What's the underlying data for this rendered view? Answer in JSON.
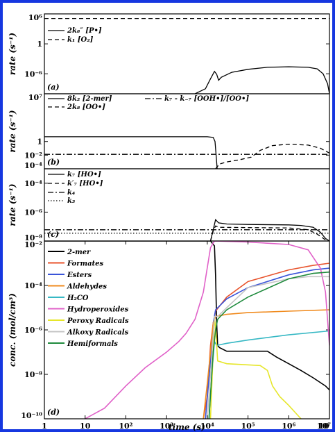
{
  "chart_data": [
    {
      "panel": "(a)",
      "type": "line",
      "ylabel": "rate (s⁻¹)",
      "yscale": "log",
      "ylim": [
        1e-10,
        1000000.0
      ],
      "yticks": [
        {
          "v": 1000000.0,
          "t": "10⁶"
        },
        {
          "v": 1,
          "t": "1"
        },
        {
          "v": 1e-06,
          "t": "10⁻⁶"
        }
      ],
      "legend": [
        "2k₈″ [P•]",
        "k₁ [O₂]"
      ],
      "series": [
        {
          "name": "2k₈″ [P•]",
          "style": "solid",
          "points": [
            [
              5000,
              1e-10
            ],
            [
              9000,
              1e-09
            ],
            [
              12000,
              1e-07
            ],
            [
              15000,
              3e-06
            ],
            [
              17000,
              8e-07
            ],
            [
              19000,
              5e-08
            ],
            [
              22000,
              2e-07
            ],
            [
              40000,
              2e-06
            ],
            [
              100000,
              8e-06
            ],
            [
              300000,
              2e-05
            ],
            [
              1000000,
              2.5e-05
            ],
            [
              3000000,
              2e-05
            ],
            [
              5000000,
              1e-05
            ],
            [
              7000000,
              1e-06
            ],
            [
              9000000,
              1e-08
            ],
            [
              10000000,
              1e-10
            ]
          ]
        },
        {
          "name": "k₁ [O₂]",
          "style": "dashed",
          "points": [
            [
              1,
              120000.0
            ],
            [
              10000000,
              120000.0
            ]
          ]
        }
      ]
    },
    {
      "panel": "(b)",
      "type": "line",
      "ylabel": "rate (s⁻¹)",
      "yscale": "log",
      "ylim": [
        0.0001,
        10000000.0
      ],
      "yticks": [
        {
          "v": 10000000.0,
          "t": "10⁷"
        },
        {
          "v": 1,
          "t": "1"
        },
        {
          "v": 0.01,
          "t": "10⁻²"
        },
        {
          "v": 0.0001,
          "t": "10⁻⁴"
        }
      ],
      "legend": [
        "8k₂ [2-mer]",
        "k₇ - k₋₇ [OOH•]/[OO•]",
        "2k₈ [OO•]"
      ],
      "series": [
        {
          "name": "8k₂ [2-mer]",
          "style": "solid",
          "points": [
            [
              1,
              5
            ],
            [
              10000,
              5
            ],
            [
              14000,
              4
            ],
            [
              15500,
              1
            ],
            [
              16500,
              0.01
            ],
            [
              17500,
              0.0001
            ]
          ]
        },
        {
          "name": "k₇ - k₋₇ [OOH•]/[OO•]",
          "style": "dashdot",
          "points": [
            [
              1,
              0.013
            ],
            [
              10000000,
              0.013
            ]
          ]
        },
        {
          "name": "2k₈ [OO•]",
          "style": "dashed",
          "points": [
            [
              16000,
              0.0001
            ],
            [
              20000,
              0.0005
            ],
            [
              30000,
              0.001
            ],
            [
              60000,
              0.002
            ],
            [
              120000,
              0.005
            ],
            [
              200000,
              0.05
            ],
            [
              400000,
              0.25
            ],
            [
              1000000,
              0.4
            ],
            [
              3000000,
              0.3
            ],
            [
              6000000,
              0.1
            ],
            [
              10000000,
              0.02
            ]
          ]
        }
      ]
    },
    {
      "panel": "(c)",
      "type": "line",
      "ylabel": "rate (s⁻¹)",
      "yscale": "log",
      "ylim": [
        1e-08,
        0.001
      ],
      "yticks": [
        {
          "v": 0.0001,
          "t": "10⁻⁴"
        },
        {
          "v": 1e-06,
          "t": "10⁻⁶"
        },
        {
          "v": 1e-08,
          "t": "10⁻⁸"
        }
      ],
      "legend": [
        "k₇ [HO•]",
        "k′₇ [HO•]",
        "k₄",
        "k₃"
      ],
      "series": [
        {
          "name": "k₇ [HO•]",
          "style": "solid",
          "points": [
            [
              12000,
              1e-08
            ],
            [
              14000,
              6e-08
            ],
            [
              16000,
              3e-07
            ],
            [
              19000,
              1.8e-07
            ],
            [
              30000,
              1.5e-07
            ],
            [
              100000,
              1.4e-07
            ],
            [
              1000000,
              1.3e-07
            ],
            [
              2000000,
              1.2e-07
            ],
            [
              4000000,
              9e-08
            ],
            [
              6000000,
              4e-08
            ],
            [
              8000000,
              1.5e-08
            ],
            [
              10000000,
              1e-08
            ]
          ]
        },
        {
          "name": "k′₇ [HO•]",
          "style": "dashed",
          "points": [
            [
              12000,
              1e-08
            ],
            [
              14000,
              5e-08
            ],
            [
              16000,
              1.1e-07
            ],
            [
              19000,
              9e-08
            ],
            [
              100000,
              8.5e-08
            ],
            [
              1000000,
              8e-08
            ],
            [
              3000000,
              6e-08
            ],
            [
              5000000,
              3e-08
            ],
            [
              8000000,
              1.2e-08
            ],
            [
              10000000,
              1e-08
            ]
          ]
        },
        {
          "name": "k₄",
          "style": "dashdot",
          "points": [
            [
              1,
              6e-08
            ],
            [
              10000000,
              6e-08
            ]
          ]
        },
        {
          "name": "k₃",
          "style": "dotted",
          "points": [
            [
              1,
              3.5e-08
            ],
            [
              10000000,
              3.5e-08
            ]
          ]
        }
      ]
    },
    {
      "panel": "(d)",
      "type": "line",
      "ylabel": "conc. (mol/cm³)",
      "xlabel": "time (s)",
      "xscale": "log",
      "xlim": [
        1,
        10000000.0
      ],
      "xticks": [
        {
          "v": 1,
          "t": "1"
        },
        {
          "v": 10,
          "t": "10"
        },
        {
          "v": 100,
          "t": "10²"
        },
        {
          "v": 1000,
          "t": "10³"
        },
        {
          "v": 10000,
          "t": "10⁴"
        },
        {
          "v": 100000,
          "t": "10⁵"
        },
        {
          "v": 1000000,
          "t": "10⁶"
        },
        {
          "v": 10000000,
          "t": "10⁷"
        },
        {
          "v": 100000000,
          "t": "10"
        }
      ],
      "yscale": "log",
      "ylim": [
        1e-10,
        0.01
      ],
      "yticks": [
        {
          "v": 0.01,
          "t": "10⁻²"
        },
        {
          "v": 0.0001,
          "t": "10⁻⁴"
        },
        {
          "v": 1e-06,
          "t": "10⁻⁶"
        },
        {
          "v": 1e-08,
          "t": "10⁻⁸"
        },
        {
          "v": 1e-10,
          "t": "10⁻¹⁰"
        }
      ],
      "series": [
        {
          "name": "2-mer",
          "color": "#000000",
          "points": [
            [
              1,
              0.01
            ],
            [
              12000,
              0.01
            ],
            [
              15000,
              0.006
            ],
            [
              16000,
              0.0003
            ],
            [
              17000,
              2e-06
            ],
            [
              18000,
              2e-07
            ],
            [
              20000,
              1.6e-07
            ],
            [
              30000,
              1.1e-07
            ],
            [
              100000.0,
              1.1e-07
            ],
            [
              300000.0,
              1.1e-07
            ],
            [
              500000.0,
              6e-08
            ],
            [
              1000000.0,
              3e-08
            ],
            [
              2000000.0,
              1.5e-08
            ],
            [
              4000000.0,
              7e-09
            ],
            [
              8000000.0,
              3e-09
            ],
            [
              10000000.0,
              2e-09
            ]
          ]
        },
        {
          "name": "Formates",
          "color": "#e8532c",
          "points": [
            [
              8000,
              1e-10
            ],
            [
              10000,
              1e-09
            ],
            [
              12000,
              2e-07
            ],
            [
              14000,
              2e-06
            ],
            [
              16000,
              7e-06
            ],
            [
              30000,
              3e-05
            ],
            [
              100000.0,
              0.00015
            ],
            [
              1000000.0,
              0.0005
            ],
            [
              4000000.0,
              0.0008
            ],
            [
              10000000.0,
              0.001
            ]
          ]
        },
        {
          "name": "Esters",
          "color": "#3a54d8",
          "points": [
            [
              9000,
              1e-10
            ],
            [
              12000,
              4e-08
            ],
            [
              14000,
              2e-06
            ],
            [
              16000,
              8e-06
            ],
            [
              30000,
              2.5e-05
            ],
            [
              100000.0,
              8e-05
            ],
            [
              1000000.0,
              0.0003
            ],
            [
              4000000.0,
              0.0005
            ],
            [
              10000000.0,
              0.0006
            ]
          ]
        },
        {
          "name": "Aldehydes",
          "color": "#f08b1f",
          "points": [
            [
              8000,
              1e-10
            ],
            [
              10000,
              4e-09
            ],
            [
              12000,
              1e-07
            ],
            [
              14000,
              2e-06
            ],
            [
              16000,
              4e-06
            ],
            [
              30000,
              5e-06
            ],
            [
              100000.0,
              6e-06
            ],
            [
              1000000.0,
              7e-06
            ],
            [
              10000000.0,
              8e-06
            ]
          ]
        },
        {
          "name": "H₂CO",
          "color": "#36b8c4",
          "points": [
            [
              11000,
              1e-10
            ],
            [
              13000,
              1e-08
            ],
            [
              15000,
              3e-07
            ],
            [
              17000,
              2e-07
            ],
            [
              30000,
              2.5e-07
            ],
            [
              100000.0,
              3.5e-07
            ],
            [
              1000000.0,
              6e-07
            ],
            [
              10000000.0,
              9e-07
            ]
          ]
        },
        {
          "name": "Hydroperoxides",
          "color": "#e060c8",
          "points": [
            [
              10,
              1e-10
            ],
            [
              30,
              3e-10
            ],
            [
              100,
              3e-09
            ],
            [
              300,
              2e-08
            ],
            [
              1000,
              1e-07
            ],
            [
              2000,
              3e-07
            ],
            [
              3000,
              7e-07
            ],
            [
              5000,
              3e-06
            ],
            [
              8000,
              5e-05
            ],
            [
              12000,
              0.005
            ],
            [
              15000,
              0.01
            ],
            [
              100000.0,
              0.009
            ],
            [
              1000000.0,
              0.007
            ],
            [
              3000000.0,
              0.004
            ],
            [
              6000000.0,
              0.0006
            ],
            [
              8000000.0,
              5e-05
            ],
            [
              10000000.0,
              2e-07
            ]
          ]
        },
        {
          "name": "Peroxy Radicals",
          "color": "#e6e62a",
          "points": [
            [
              12000,
              1e-10
            ],
            [
              15000,
              3e-06
            ],
            [
              16000,
              1.5e-06
            ],
            [
              18000,
              4e-08
            ],
            [
              30000,
              3e-08
            ],
            [
              200000.0,
              2.5e-08
            ],
            [
              300000.0,
              1.5e-08
            ],
            [
              400000.0,
              3e-09
            ],
            [
              600000.0,
              1e-09
            ],
            [
              1000000.0,
              4e-10
            ],
            [
              2000000.0,
              1e-10
            ]
          ]
        },
        {
          "name": "Alkoxy Radicals",
          "color": "#c4c4c4",
          "points": [
            [
              10000,
              1e-10
            ],
            [
              12000,
              1e-08
            ],
            [
              15000,
              4e-06
            ],
            [
              18000,
              4e-06
            ],
            [
              30000,
              1e-05
            ],
            [
              100000.0,
              8e-05
            ],
            [
              1000000.0,
              0.0002
            ],
            [
              3000000.0,
              0.00025
            ],
            [
              10000000.0,
              0.00025
            ]
          ]
        },
        {
          "name": "Hemiformals",
          "color": "#1e8a3c",
          "points": [
            [
              11000,
              1e-10
            ],
            [
              14000,
              1e-07
            ],
            [
              16000,
              1e-06
            ],
            [
              18000,
              3e-06
            ],
            [
              30000,
              8e-06
            ],
            [
              100000.0,
              3e-05
            ],
            [
              1000000.0,
              0.0002
            ],
            [
              4000000.0,
              0.00035
            ],
            [
              10000000.0,
              0.0004
            ]
          ]
        }
      ]
    }
  ]
}
